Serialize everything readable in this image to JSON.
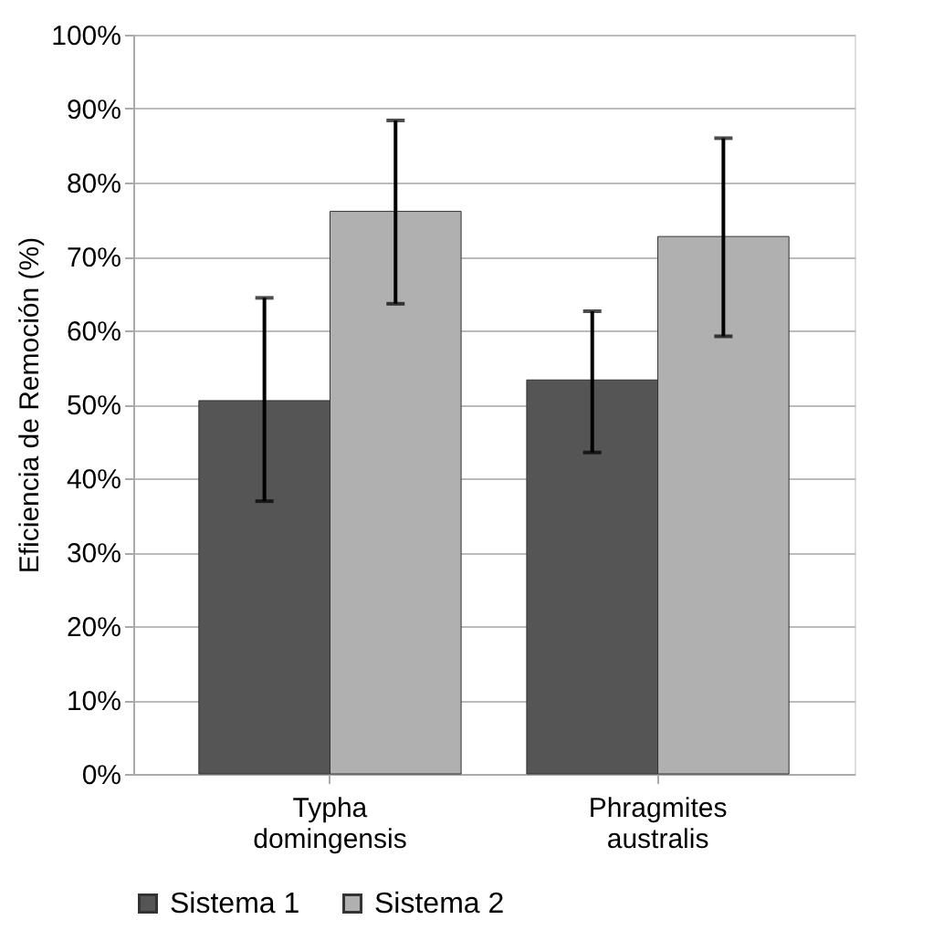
{
  "chart_data": {
    "type": "bar",
    "ylabel": "Eficiencia de Remoción (%)",
    "categories": [
      "Typha domingensis",
      "Phragmites australis"
    ],
    "series": [
      {
        "name": "Sistema 1",
        "color": "#555555",
        "values": [
          50.5,
          53.3
        ],
        "errors": [
          [
            36.9,
            64.4
          ],
          [
            43.5,
            62.6
          ]
        ]
      },
      {
        "name": "Sistema 2",
        "color": "#b0b0b0",
        "values": [
          76.1,
          72.7
        ],
        "errors": [
          [
            63.6,
            88.4
          ],
          [
            59.2,
            86.0
          ]
        ]
      }
    ],
    "ylim": [
      0,
      100
    ],
    "yticks": [
      {
        "value": 0,
        "label": "0%"
      },
      {
        "value": 10,
        "label": "10%"
      },
      {
        "value": 20,
        "label": "20%"
      },
      {
        "value": 30,
        "label": "30%"
      },
      {
        "value": 40,
        "label": "40%"
      },
      {
        "value": 50,
        "label": "50%"
      },
      {
        "value": 60,
        "label": "60%"
      },
      {
        "value": 70,
        "label": "70%"
      },
      {
        "value": 80,
        "label": "80%"
      },
      {
        "value": 90,
        "label": "90%"
      },
      {
        "value": 100,
        "label": "100%"
      }
    ],
    "grid": "y",
    "legend": "bottom left"
  }
}
